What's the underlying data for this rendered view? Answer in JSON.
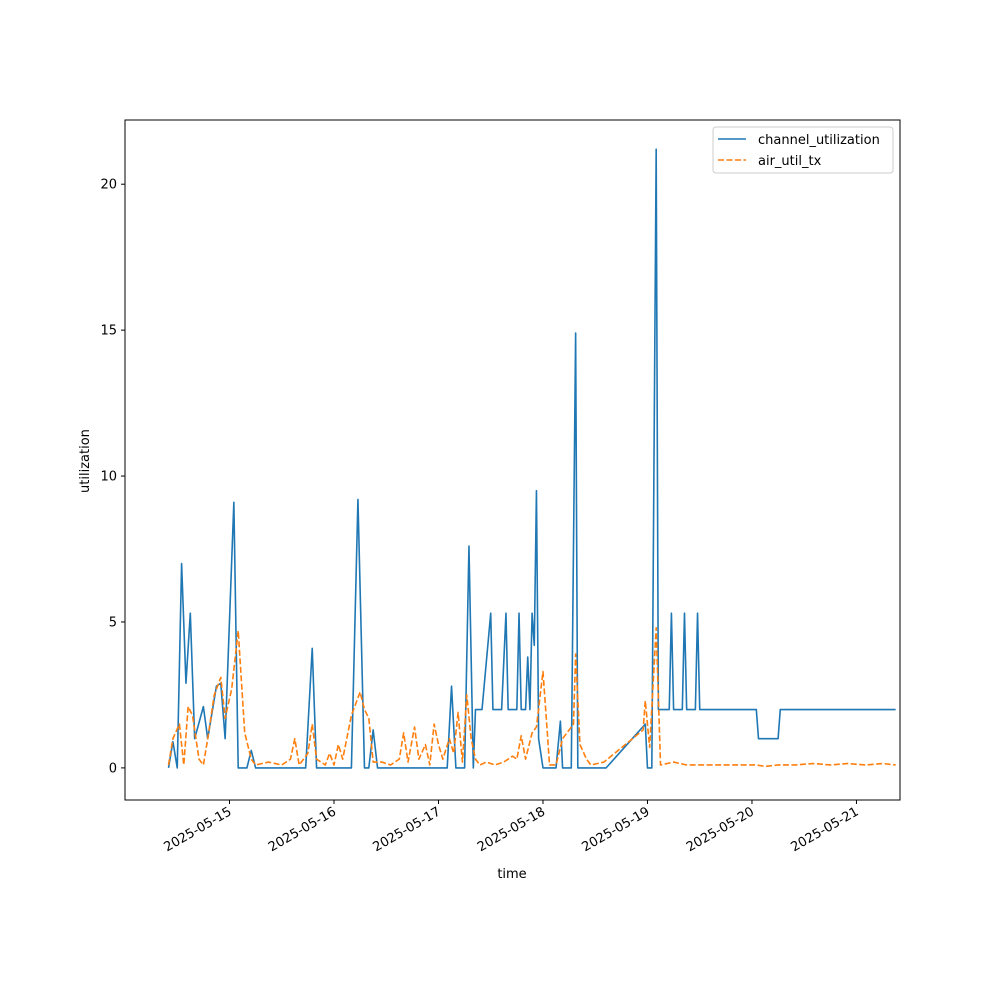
{
  "chart_data": {
    "type": "line",
    "title": "",
    "xlabel": "time",
    "ylabel": "utilization",
    "x_axis": "date",
    "xlim": [
      "2025-05-14T00:00",
      "2025-05-21T10:00"
    ],
    "ylim": [
      -1.1,
      22.2
    ],
    "x_ticks": [
      "2025-05-15",
      "2025-05-16",
      "2025-05-17",
      "2025-05-18",
      "2025-05-19",
      "2025-05-20",
      "2025-05-21"
    ],
    "y_ticks": [
      0,
      5,
      10,
      15,
      20
    ],
    "grid": false,
    "legend": "upper right",
    "series": [
      {
        "name": "channel_utilization",
        "color": "#1f77b4",
        "style": "solid",
        "points": [
          [
            "2025-05-14T10:00",
            0
          ],
          [
            "2025-05-14T11:00",
            0.9
          ],
          [
            "2025-05-14T12:00",
            0
          ],
          [
            "2025-05-14T13:00",
            7.0
          ],
          [
            "2025-05-14T14:00",
            2.9
          ],
          [
            "2025-05-14T15:00",
            5.3
          ],
          [
            "2025-05-14T16:00",
            1.0
          ],
          [
            "2025-05-14T18:00",
            2.1
          ],
          [
            "2025-05-14T19:00",
            1.0
          ],
          [
            "2025-05-14T21:00",
            2.8
          ],
          [
            "2025-05-14T22:00",
            2.9
          ],
          [
            "2025-05-14T23:00",
            1.0
          ],
          [
            "2025-05-15T01:00",
            9.1
          ],
          [
            "2025-05-15T02:00",
            0
          ],
          [
            "2025-05-15T04:00",
            0
          ],
          [
            "2025-05-15T05:00",
            0.6
          ],
          [
            "2025-05-15T06:00",
            0
          ],
          [
            "2025-05-15T17:30",
            0
          ],
          [
            "2025-05-15T19:00",
            4.1
          ],
          [
            "2025-05-15T20:00",
            0
          ],
          [
            "2025-05-16T04:00",
            0
          ],
          [
            "2025-05-16T05:30",
            9.2
          ],
          [
            "2025-05-16T07:00",
            0
          ],
          [
            "2025-05-16T08:00",
            0
          ],
          [
            "2025-05-16T09:00",
            1.3
          ],
          [
            "2025-05-16T10:00",
            0
          ],
          [
            "2025-05-17T02:00",
            0
          ],
          [
            "2025-05-17T03:00",
            2.8
          ],
          [
            "2025-05-17T04:00",
            0
          ],
          [
            "2025-05-17T06:00",
            0
          ],
          [
            "2025-05-17T07:00",
            7.6
          ],
          [
            "2025-05-17T08:00",
            0
          ],
          [
            "2025-05-17T08:30",
            2.0
          ],
          [
            "2025-05-17T10:00",
            2.0
          ],
          [
            "2025-05-17T12:00",
            5.3
          ],
          [
            "2025-05-17T12:30",
            2.0
          ],
          [
            "2025-05-17T14:30",
            2.0
          ],
          [
            "2025-05-17T15:30",
            5.3
          ],
          [
            "2025-05-17T16:00",
            2.0
          ],
          [
            "2025-05-17T18:00",
            2.0
          ],
          [
            "2025-05-17T18:30",
            5.3
          ],
          [
            "2025-05-17T19:00",
            2.0
          ],
          [
            "2025-05-17T20:00",
            2.0
          ],
          [
            "2025-05-17T20:30",
            3.8
          ],
          [
            "2025-05-17T21:00",
            2.0
          ],
          [
            "2025-05-17T21:30",
            5.3
          ],
          [
            "2025-05-17T22:00",
            4.2
          ],
          [
            "2025-05-17T22:30",
            9.5
          ],
          [
            "2025-05-17T23:00",
            1.0
          ],
          [
            "2025-05-18T00:00",
            0
          ],
          [
            "2025-05-18T03:00",
            0
          ],
          [
            "2025-05-18T04:00",
            1.6
          ],
          [
            "2025-05-18T04:30",
            0
          ],
          [
            "2025-05-18T06:30",
            0
          ],
          [
            "2025-05-18T07:30",
            14.9
          ],
          [
            "2025-05-18T08:00",
            0
          ],
          [
            "2025-05-18T14:30",
            0
          ],
          [
            "2025-05-18T23:30",
            1.5
          ],
          [
            "2025-05-19T00:00",
            0
          ],
          [
            "2025-05-19T01:00",
            0
          ],
          [
            "2025-05-19T02:00",
            21.2
          ],
          [
            "2025-05-19T02:30",
            2.0
          ],
          [
            "2025-05-19T05:00",
            2.0
          ],
          [
            "2025-05-19T05:30",
            5.3
          ],
          [
            "2025-05-19T06:00",
            2.0
          ],
          [
            "2025-05-19T08:00",
            2.0
          ],
          [
            "2025-05-19T08:30",
            5.3
          ],
          [
            "2025-05-19T09:00",
            2.0
          ],
          [
            "2025-05-19T11:00",
            2.0
          ],
          [
            "2025-05-19T11:30",
            5.3
          ],
          [
            "2025-05-19T12:00",
            2.0
          ],
          [
            "2025-05-20T01:00",
            2.0
          ],
          [
            "2025-05-20T01:30",
            1.0
          ],
          [
            "2025-05-20T06:00",
            1.0
          ],
          [
            "2025-05-20T06:30",
            2.0
          ],
          [
            "2025-05-21T09:00",
            2.0
          ]
        ]
      },
      {
        "name": "air_util_tx",
        "color": "#ff7f0e",
        "style": "dashed",
        "points": [
          [
            "2025-05-14T10:00",
            0.1
          ],
          [
            "2025-05-14T11:00",
            1.0
          ],
          [
            "2025-05-14T12:30",
            1.5
          ],
          [
            "2025-05-14T13:30",
            0.1
          ],
          [
            "2025-05-14T14:30",
            2.1
          ],
          [
            "2025-05-14T15:30",
            1.8
          ],
          [
            "2025-05-14T17:00",
            0.3
          ],
          [
            "2025-05-14T18:00",
            0.1
          ],
          [
            "2025-05-14T19:00",
            1.0
          ],
          [
            "2025-05-14T20:30",
            2.5
          ],
          [
            "2025-05-14T22:00",
            3.1
          ],
          [
            "2025-05-14T23:00",
            1.7
          ],
          [
            "2025-05-15T00:30",
            2.7
          ],
          [
            "2025-05-15T02:00",
            4.7
          ],
          [
            "2025-05-15T03:30",
            1.2
          ],
          [
            "2025-05-15T05:00",
            0.3
          ],
          [
            "2025-05-15T06:00",
            0.1
          ],
          [
            "2025-05-15T09:00",
            0.2
          ],
          [
            "2025-05-15T12:00",
            0.1
          ],
          [
            "2025-05-15T14:00",
            0.3
          ],
          [
            "2025-05-15T15:00",
            1.0
          ],
          [
            "2025-05-15T16:00",
            0.1
          ],
          [
            "2025-05-15T18:00",
            0.5
          ],
          [
            "2025-05-15T19:00",
            1.5
          ],
          [
            "2025-05-15T20:00",
            0.3
          ],
          [
            "2025-05-15T22:00",
            0.1
          ],
          [
            "2025-05-15T23:00",
            0.5
          ],
          [
            "2025-05-16T00:00",
            0.1
          ],
          [
            "2025-05-16T01:00",
            0.8
          ],
          [
            "2025-05-16T02:00",
            0.3
          ],
          [
            "2025-05-16T04:00",
            1.8
          ],
          [
            "2025-05-16T06:00",
            2.6
          ],
          [
            "2025-05-16T07:00",
            2.0
          ],
          [
            "2025-05-16T08:00",
            1.7
          ],
          [
            "2025-05-16T09:00",
            0.2
          ],
          [
            "2025-05-16T11:00",
            0.2
          ],
          [
            "2025-05-16T13:00",
            0.1
          ],
          [
            "2025-05-16T15:00",
            0.3
          ],
          [
            "2025-05-16T16:00",
            1.2
          ],
          [
            "2025-05-16T17:00",
            0.2
          ],
          [
            "2025-05-16T18:30",
            1.4
          ],
          [
            "2025-05-16T19:30",
            0.3
          ],
          [
            "2025-05-16T21:00",
            0.8
          ],
          [
            "2025-05-16T22:00",
            0.1
          ],
          [
            "2025-05-16T23:00",
            1.5
          ],
          [
            "2025-05-17T00:00",
            0.8
          ],
          [
            "2025-05-17T01:00",
            0.3
          ],
          [
            "2025-05-17T02:30",
            1.0
          ],
          [
            "2025-05-17T03:30",
            0.5
          ],
          [
            "2025-05-17T04:30",
            1.9
          ],
          [
            "2025-05-17T05:30",
            0.2
          ],
          [
            "2025-05-17T06:30",
            2.5
          ],
          [
            "2025-05-17T07:30",
            1.0
          ],
          [
            "2025-05-17T08:30",
            0.3
          ],
          [
            "2025-05-17T09:30",
            0.1
          ],
          [
            "2025-05-17T11:00",
            0.2
          ],
          [
            "2025-05-17T13:00",
            0.1
          ],
          [
            "2025-05-17T15:00",
            0.2
          ],
          [
            "2025-05-17T17:00",
            0.4
          ],
          [
            "2025-05-17T18:00",
            0.3
          ],
          [
            "2025-05-17T19:00",
            1.1
          ],
          [
            "2025-05-17T20:00",
            0.3
          ],
          [
            "2025-05-17T21:30",
            1.2
          ],
          [
            "2025-05-17T22:30",
            1.4
          ],
          [
            "2025-05-18T00:00",
            3.3
          ],
          [
            "2025-05-18T01:00",
            1.2
          ],
          [
            "2025-05-18T01:30",
            0.1
          ],
          [
            "2025-05-18T03:00",
            0.1
          ],
          [
            "2025-05-18T04:30",
            1.0
          ],
          [
            "2025-05-18T06:00",
            1.3
          ],
          [
            "2025-05-18T07:00",
            1.5
          ],
          [
            "2025-05-18T07:30",
            3.9
          ],
          [
            "2025-05-18T08:30",
            0.8
          ],
          [
            "2025-05-18T10:00",
            0.3
          ],
          [
            "2025-05-18T11:00",
            0.1
          ],
          [
            "2025-05-18T14:00",
            0.2
          ],
          [
            "2025-05-18T23:00",
            1.3
          ],
          [
            "2025-05-18T23:30",
            2.3
          ],
          [
            "2025-05-19T00:30",
            0.7
          ],
          [
            "2025-05-19T02:00",
            4.8
          ],
          [
            "2025-05-19T03:00",
            0.1
          ],
          [
            "2025-05-19T06:00",
            0.2
          ],
          [
            "2025-05-19T09:00",
            0.1
          ],
          [
            "2025-05-19T13:00",
            0.1
          ],
          [
            "2025-05-19T17:00",
            0.1
          ],
          [
            "2025-05-19T21:00",
            0.1
          ],
          [
            "2025-05-20T01:00",
            0.1
          ],
          [
            "2025-05-20T03:00",
            0.05
          ],
          [
            "2025-05-20T06:00",
            0.1
          ],
          [
            "2025-05-20T10:00",
            0.1
          ],
          [
            "2025-05-20T14:00",
            0.15
          ],
          [
            "2025-05-20T18:00",
            0.1
          ],
          [
            "2025-05-20T22:00",
            0.15
          ],
          [
            "2025-05-21T02:00",
            0.1
          ],
          [
            "2025-05-21T06:00",
            0.15
          ],
          [
            "2025-05-21T09:00",
            0.1
          ]
        ]
      }
    ]
  }
}
